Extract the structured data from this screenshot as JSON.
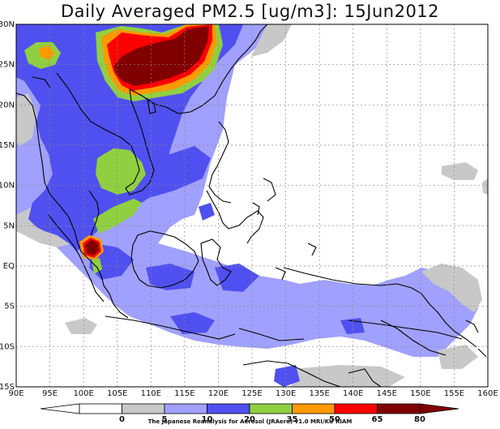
{
  "title": "Daily Averaged PM2.5 [ug/m3]: 15Jun2012",
  "x_ticks": [
    "90E",
    "95E",
    "100E",
    "105E",
    "110E",
    "115E",
    "120E",
    "125E",
    "130E",
    "135E",
    "140E",
    "145E",
    "150E",
    "155E",
    "160E"
  ],
  "y_ticks": [
    "30N",
    "25N",
    "20N",
    "15N",
    "10N",
    "5N",
    "EQ",
    "5S",
    "10S",
    "15S"
  ],
  "colorbar": {
    "labels": [
      "0",
      "5",
      "10",
      "20",
      "35",
      "50",
      "65",
      "80"
    ],
    "colors": [
      "#ffffff",
      "#c8c8c8",
      "#a0a0ff",
      "#5050f0",
      "#90d040",
      "#ff9900",
      "#ff0000",
      "#800000"
    ]
  },
  "credit": "The Japanese Reanalysis for Aerosol (JRAero) v1.0 MRI/KU RIAM",
  "map": {
    "lon_range": [
      90,
      160
    ],
    "lat_range": [
      -15,
      30
    ],
    "layers": [
      {
        "name": "light-blue-region",
        "color": "#a0a0ff"
      },
      {
        "name": "blue-region",
        "color": "#5050f0"
      },
      {
        "name": "green-region",
        "color": "#90d040"
      },
      {
        "name": "orange-region",
        "color": "#ff9900"
      },
      {
        "name": "red-region",
        "color": "#ff0000"
      },
      {
        "name": "darkred-region",
        "color": "#800000"
      },
      {
        "name": "gray-region",
        "color": "#c8c8c8"
      }
    ]
  }
}
